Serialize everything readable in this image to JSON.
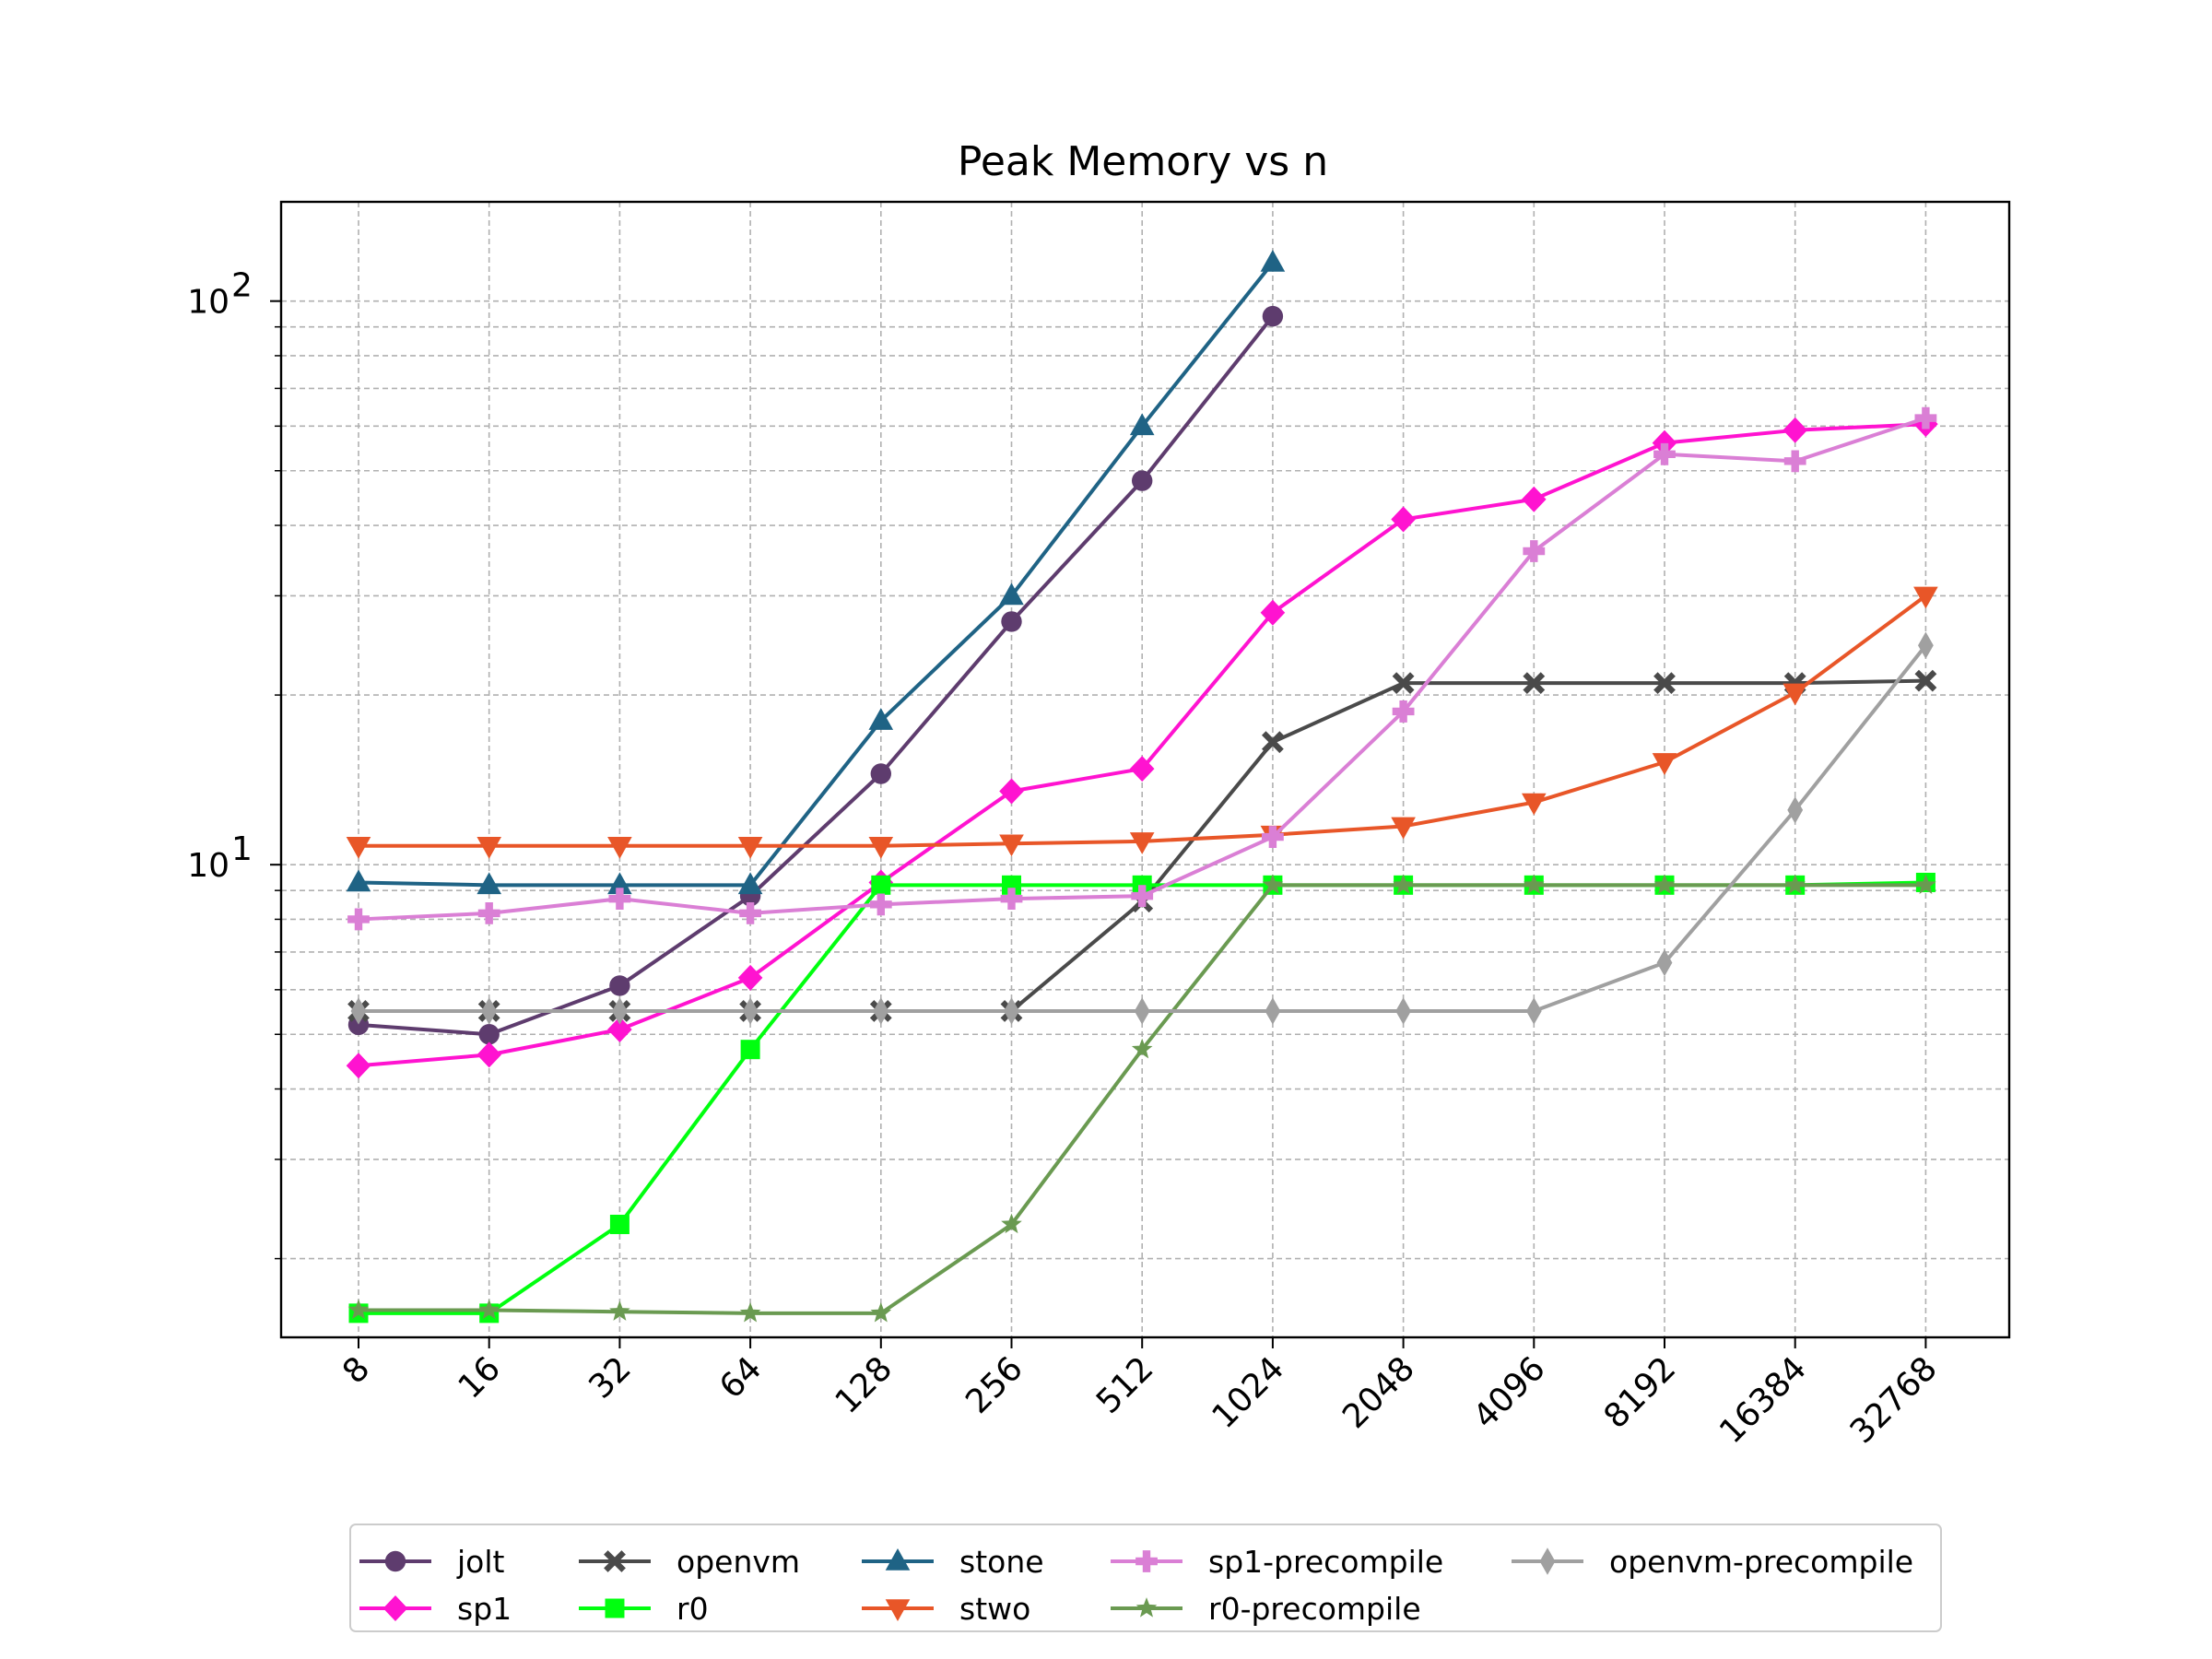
{
  "chart_data": {
    "type": "line",
    "title": "Peak Memory vs n",
    "xlabel": "",
    "ylabel": "",
    "x_scale": "categorical",
    "y_scale": "log",
    "ylim": [
      1.45,
      150
    ],
    "y_tick_labels": [
      {
        "value": 10,
        "base": "10",
        "exp": "1"
      },
      {
        "value": 100,
        "base": "10",
        "exp": "2"
      }
    ],
    "grid": true,
    "legend_position": "bottom-center",
    "categories": [
      "8",
      "16",
      "32",
      "64",
      "128",
      "256",
      "512",
      "1024",
      "2048",
      "4096",
      "8192",
      "16384",
      "32768"
    ],
    "series": [
      {
        "name": "jolt",
        "color": "#5e3c6e",
        "marker": "circle",
        "values": [
          5.2,
          5.0,
          6.1,
          8.8,
          14.5,
          27.0,
          48.0,
          94.0,
          null,
          null,
          null,
          null,
          null
        ]
      },
      {
        "name": "sp1",
        "color": "#ff13d0",
        "marker": "diamond",
        "values": [
          4.4,
          4.6,
          5.1,
          6.3,
          9.3,
          13.5,
          14.8,
          28.0,
          41.0,
          44.5,
          56.0,
          59.0,
          60.5
        ]
      },
      {
        "name": "openvm",
        "color": "#4a4a4a",
        "marker": "x",
        "values": [
          5.5,
          5.5,
          5.5,
          5.5,
          5.5,
          5.5,
          8.6,
          16.5,
          21.0,
          21.0,
          21.0,
          21.0,
          21.2
        ]
      },
      {
        "name": "r0",
        "color": "#00ff0f",
        "marker": "square",
        "values": [
          1.6,
          1.6,
          2.3,
          4.7,
          9.2,
          9.2,
          9.2,
          9.2,
          9.2,
          9.2,
          9.2,
          9.2,
          9.3
        ]
      },
      {
        "name": "stone",
        "color": "#1f6385",
        "marker": "triangle-up",
        "values": [
          9.3,
          9.2,
          9.2,
          9.2,
          18.0,
          30.0,
          60.0,
          117.0,
          null,
          null,
          null,
          null,
          null
        ]
      },
      {
        "name": "stwo",
        "color": "#e85628",
        "marker": "triangle-down",
        "values": [
          10.8,
          10.8,
          10.8,
          10.8,
          10.8,
          10.9,
          11.0,
          11.3,
          11.7,
          12.9,
          15.2,
          20.2,
          30.0
        ]
      },
      {
        "name": "sp1-precompile",
        "color": "#da7fd5",
        "marker": "plus",
        "values": [
          8.0,
          8.2,
          8.7,
          8.2,
          8.5,
          8.7,
          8.8,
          11.2,
          18.7,
          36.0,
          53.5,
          52.0,
          62.0
        ]
      },
      {
        "name": "r0-precompile",
        "color": "#6a9a51",
        "marker": "star",
        "values": [
          1.62,
          1.62,
          1.61,
          1.6,
          1.6,
          2.3,
          4.7,
          9.2,
          9.2,
          9.2,
          9.2,
          9.2,
          9.2
        ]
      },
      {
        "name": "openvm-precompile",
        "color": "#a0a0a0",
        "marker": "thin-diamond",
        "values": [
          5.5,
          5.5,
          5.5,
          5.5,
          5.5,
          5.5,
          5.5,
          5.5,
          5.5,
          5.5,
          6.7,
          12.5,
          24.5
        ]
      }
    ]
  }
}
